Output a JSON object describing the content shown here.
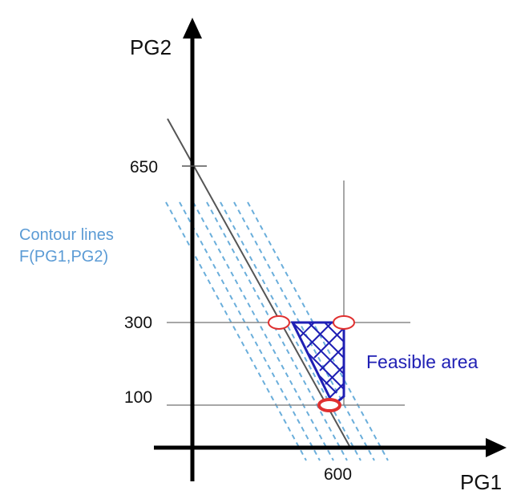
{
  "axes": {
    "x_label": "PG1",
    "y_label": "PG2",
    "x_ticks": [
      "600"
    ],
    "y_ticks": [
      "650",
      "300",
      "100"
    ]
  },
  "annotations": {
    "contour_label_line1": "Contour lines",
    "contour_label_line2": "F(PG1,PG2)",
    "feasible_label": "Feasible area"
  },
  "colors": {
    "axis": "#000000",
    "constraint": "#8a8a8a",
    "load_line": "#555555",
    "contour": "#6aaedb",
    "contour_text": "#5b9bd5",
    "feasible": "#1f1fb4",
    "vertex": "#e03030"
  },
  "diagram": {
    "contour_line_count": 7,
    "vertex_markers": [
      "upper-left vertex (PG2 = 300)",
      "upper-right vertex (PG1 = 600, PG2 = 300)",
      "bottom vertex (PG2 = 100)"
    ]
  }
}
